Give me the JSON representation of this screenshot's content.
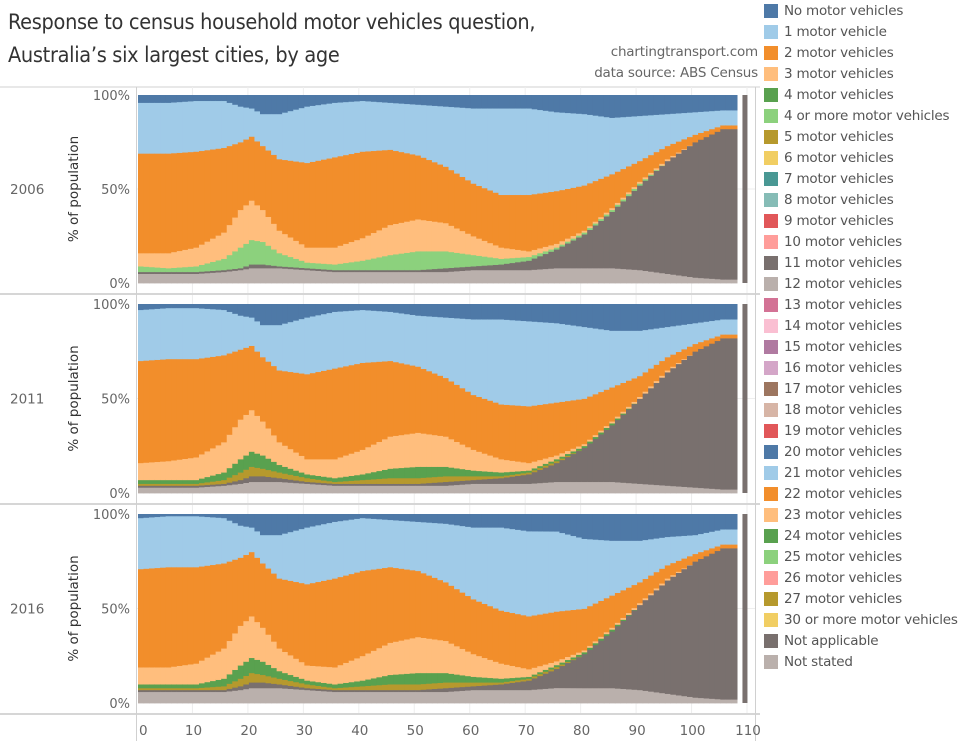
{
  "header": {
    "title_line1": "Response to census household motor vehicles question,",
    "title_line2": "Australia’s six largest cities, by age",
    "credit": "chartingtransport.com",
    "source": "data source: ABS Census"
  },
  "chart_data": {
    "type": "area",
    "title": "Response to census household motor vehicles question, Australia’s six largest cities, by age",
    "xlabel": "",
    "ylabel": "% of population",
    "xlim": [
      0,
      110
    ],
    "ylim": [
      0,
      100
    ],
    "x_ticks": [
      "0",
      "10",
      "20",
      "30",
      "40",
      "50",
      "60",
      "70",
      "80",
      "90",
      "100",
      "110"
    ],
    "y_ticks": [
      "0%",
      "50%",
      "100%"
    ],
    "grid": true,
    "legend_position": "right",
    "stacked": true,
    "stack_order_bottom_to_top": [
      "Not stated",
      "Not applicable",
      "5+ motor vehicles",
      "4 or more motor vehicles",
      "3 motor vehicles",
      "2 motor vehicles",
      "1 motor vehicle",
      "No motor vehicles"
    ],
    "x": [
      0,
      5,
      10,
      15,
      18,
      20,
      22,
      25,
      30,
      35,
      40,
      45,
      50,
      55,
      60,
      65,
      70,
      75,
      80,
      85,
      90,
      95,
      100,
      105
    ],
    "panels": [
      {
        "label": "2006",
        "series": [
          {
            "name": "Not stated",
            "color": "#bab0ac",
            "values": [
              5,
              5,
              5,
              6,
              7,
              8,
              8,
              8,
              7,
              6,
              6,
              6,
              6,
              6,
              7,
              7,
              7,
              8,
              8,
              8,
              7,
              5,
              3,
              2
            ]
          },
          {
            "name": "Not applicable",
            "color": "#79706e",
            "values": [
              1,
              1,
              1,
              1,
              1,
              2,
              2,
              1,
              1,
              1,
              1,
              1,
              1,
              2,
              2,
              3,
              5,
              10,
              18,
              30,
              45,
              60,
              72,
              80
            ]
          },
          {
            "name": "4 motor vehicles",
            "color": "#59a14f",
            "values": [
              0,
              0,
              0,
              0,
              0,
              0,
              0,
              0,
              0,
              0,
              0,
              0,
              0,
              0,
              0,
              0,
              0,
              0,
              0,
              0,
              0,
              0,
              0,
              0
            ]
          },
          {
            "name": "4 or more motor vehicles",
            "color": "#8cd17d",
            "values": [
              3,
              2,
              3,
              6,
              11,
              13,
              12,
              7,
              3,
              3,
              5,
              8,
              10,
              9,
              6,
              3,
              2,
              1,
              1,
              1,
              1,
              0,
              0,
              0
            ]
          },
          {
            "name": "3 motor vehicles",
            "color": "#ffbe7d",
            "values": [
              7,
              8,
              10,
              14,
              20,
              21,
              17,
              12,
              8,
              9,
              12,
              16,
              17,
              15,
              10,
              6,
              3,
              2,
              1,
              1,
              1,
              1,
              0,
              0
            ]
          },
          {
            "name": "2 motor vehicles",
            "color": "#f28e2b",
            "values": [
              53,
              53,
              51,
              45,
              36,
              34,
              34,
              38,
              45,
              48,
              46,
              40,
              34,
              30,
              28,
              28,
              30,
              28,
              24,
              18,
              11,
              7,
              4,
              2
            ]
          },
          {
            "name": "1 motor vehicle",
            "color": "#a0cbe8",
            "values": [
              27,
              27,
              27,
              25,
              19,
              15,
              17,
              24,
              30,
              29,
              27,
              25,
              27,
              32,
              40,
              46,
              46,
              42,
              38,
              30,
              24,
              17,
              12,
              8
            ]
          },
          {
            "name": "No motor vehicles",
            "color": "#4e79a7",
            "values": [
              4,
              4,
              3,
              3,
              6,
              7,
              10,
              10,
              6,
              4,
              3,
              4,
              5,
              6,
              7,
              7,
              7,
              9,
              10,
              12,
              11,
              10,
              9,
              8
            ]
          }
        ]
      },
      {
        "label": "2011",
        "series": [
          {
            "name": "Not stated",
            "color": "#bab0ac",
            "values": [
              3,
              3,
              3,
              4,
              5,
              6,
              6,
              6,
              5,
              4,
              4,
              4,
              4,
              4,
              5,
              5,
              5,
              6,
              6,
              6,
              5,
              4,
              3,
              2
            ]
          },
          {
            "name": "Not applicable",
            "color": "#79706e",
            "values": [
              1,
              1,
              1,
              1,
              2,
              3,
              3,
              2,
              1,
              1,
              1,
              1,
              1,
              2,
              2,
              3,
              5,
              10,
              18,
              30,
              45,
              60,
              72,
              80
            ]
          },
          {
            "name": "5+ motor vehicles",
            "color": "#b6992d",
            "values": [
              1,
              1,
              1,
              2,
              4,
              5,
              4,
              3,
              2,
              1,
              2,
              3,
              3,
              3,
              2,
              1,
              1,
              1,
              0,
              0,
              0,
              0,
              0,
              0
            ]
          },
          {
            "name": "4 motor vehicles",
            "color": "#59a14f",
            "values": [
              2,
              2,
              2,
              4,
              7,
              8,
              7,
              4,
              2,
              2,
              3,
              5,
              6,
              5,
              3,
              2,
              1,
              1,
              1,
              1,
              0,
              0,
              0,
              0
            ]
          },
          {
            "name": "3 motor vehicles",
            "color": "#ffbe7d",
            "values": [
              9,
              10,
              12,
              16,
              21,
              22,
              18,
              12,
              8,
              10,
              13,
              17,
              18,
              16,
              11,
              7,
              4,
              2,
              1,
              1,
              1,
              1,
              0,
              0
            ]
          },
          {
            "name": "2 motor vehicles",
            "color": "#f28e2b",
            "values": [
              54,
              54,
              52,
              46,
              37,
              34,
              34,
              38,
              45,
              48,
              46,
              40,
              35,
              31,
              29,
              29,
              30,
              28,
              24,
              18,
              11,
              7,
              4,
              2
            ]
          },
          {
            "name": "1 motor vehicle",
            "color": "#a0cbe8",
            "values": [
              27,
              27,
              27,
              24,
              18,
              15,
              17,
              24,
              30,
              30,
              28,
              26,
              27,
              32,
              40,
              45,
              45,
              42,
              38,
              30,
              24,
              16,
              11,
              8
            ]
          },
          {
            "name": "No motor vehicles",
            "color": "#4e79a7",
            "values": [
              3,
              2,
              2,
              3,
              6,
              7,
              11,
              11,
              7,
              4,
              3,
              4,
              6,
              7,
              8,
              8,
              9,
              10,
              12,
              14,
              14,
              12,
              10,
              8
            ]
          }
        ]
      },
      {
        "label": "2016",
        "series": [
          {
            "name": "Not stated",
            "color": "#bab0ac",
            "values": [
              6,
              6,
              6,
              6,
              7,
              8,
              8,
              8,
              7,
              6,
              6,
              6,
              6,
              6,
              7,
              7,
              7,
              8,
              8,
              8,
              7,
              5,
              3,
              2
            ]
          },
          {
            "name": "Not applicable",
            "color": "#79706e",
            "values": [
              1,
              1,
              1,
              1,
              2,
              3,
              3,
              2,
              1,
              1,
              1,
              1,
              1,
              2,
              2,
              3,
              5,
              10,
              18,
              30,
              45,
              60,
              72,
              80
            ]
          },
          {
            "name": "5+ motor vehicles",
            "color": "#b6992d",
            "values": [
              1,
              1,
              1,
              2,
              4,
              5,
              4,
              3,
              2,
              1,
              2,
              3,
              3,
              3,
              2,
              1,
              1,
              1,
              0,
              0,
              0,
              0,
              0,
              0
            ]
          },
          {
            "name": "4 motor vehicles",
            "color": "#59a14f",
            "values": [
              2,
              2,
              2,
              4,
              7,
              8,
              7,
              4,
              2,
              2,
              3,
              5,
              6,
              5,
              3,
              2,
              1,
              1,
              1,
              1,
              0,
              0,
              0,
              0
            ]
          },
          {
            "name": "3 motor vehicles",
            "color": "#ffbe7d",
            "values": [
              9,
              9,
              11,
              16,
              21,
              22,
              18,
              12,
              8,
              9,
              13,
              17,
              19,
              17,
              12,
              8,
              4,
              2,
              1,
              1,
              1,
              1,
              0,
              0
            ]
          },
          {
            "name": "2 motor vehicles",
            "color": "#f28e2b",
            "values": [
              52,
              53,
              51,
              45,
              36,
              34,
              34,
              37,
              43,
              47,
              45,
              40,
              35,
              31,
              29,
              28,
              28,
              26,
              22,
              17,
              11,
              7,
              4,
              2
            ]
          },
          {
            "name": "1 motor vehicle",
            "color": "#a0cbe8",
            "values": [
              27,
              27,
              27,
              24,
              17,
              13,
              15,
              23,
              30,
              30,
              28,
              25,
              26,
              31,
              38,
              44,
              45,
              42,
              37,
              29,
              22,
              15,
              10,
              8
            ]
          },
          {
            "name": "No motor vehicles",
            "color": "#4e79a7",
            "values": [
              2,
              1,
              1,
              2,
              6,
              7,
              11,
              11,
              7,
              4,
              2,
              3,
              4,
              5,
              7,
              7,
              9,
              9,
              13,
              14,
              14,
              12,
              11,
              8
            ]
          }
        ]
      }
    ]
  },
  "legend": {
    "items": [
      {
        "label": "No motor vehicles",
        "color": "#4e79a7"
      },
      {
        "label": "1 motor vehicle",
        "color": "#a0cbe8"
      },
      {
        "label": "2 motor vehicles",
        "color": "#f28e2b"
      },
      {
        "label": "3 motor vehicles",
        "color": "#ffbe7d"
      },
      {
        "label": "4 motor vehicles",
        "color": "#59a14f"
      },
      {
        "label": "4 or more motor vehicles",
        "color": "#8cd17d"
      },
      {
        "label": "5 motor vehicles",
        "color": "#b6992d"
      },
      {
        "label": "6 motor vehicles",
        "color": "#f1ce63"
      },
      {
        "label": "7 motor vehicles",
        "color": "#499894"
      },
      {
        "label": "8 motor vehicles",
        "color": "#86bcb6"
      },
      {
        "label": "9 motor vehicles",
        "color": "#e15759"
      },
      {
        "label": "10 motor vehicles",
        "color": "#ff9d9a"
      },
      {
        "label": "11 motor vehicles",
        "color": "#79706e"
      },
      {
        "label": "12 motor vehicles",
        "color": "#bab0ac"
      },
      {
        "label": "13 motor vehicles",
        "color": "#d37295"
      },
      {
        "label": "14 motor vehicles",
        "color": "#fabfd2"
      },
      {
        "label": "15 motor vehicles",
        "color": "#b07aa1"
      },
      {
        "label": "16 motor vehicles",
        "color": "#d4a6c8"
      },
      {
        "label": "17 motor vehicles",
        "color": "#9d7660"
      },
      {
        "label": "18 motor vehicles",
        "color": "#d7b5a6"
      },
      {
        "label": "19 motor vehicles",
        "color": "#e15759"
      },
      {
        "label": "20 motor vehicles",
        "color": "#4e79a7"
      },
      {
        "label": "21 motor vehicles",
        "color": "#a0cbe8"
      },
      {
        "label": "22 motor vehicles",
        "color": "#f28e2b"
      },
      {
        "label": "23 motor vehicles",
        "color": "#ffbe7d"
      },
      {
        "label": "24 motor vehicles",
        "color": "#59a14f"
      },
      {
        "label": "25 motor vehicles",
        "color": "#8cd17d"
      },
      {
        "label": "26 motor vehicles",
        "color": "#ff9d9a"
      },
      {
        "label": "27 motor vehicles",
        "color": "#b6992d"
      },
      {
        "label": "30 or more motor vehicles",
        "color": "#f1ce63"
      },
      {
        "label": "Not applicable",
        "color": "#79706e"
      },
      {
        "label": "Not stated",
        "color": "#bab0ac"
      }
    ]
  }
}
